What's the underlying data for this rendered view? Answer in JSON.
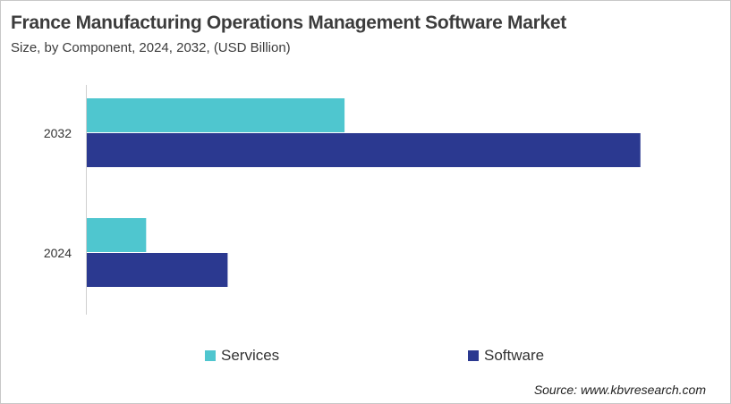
{
  "chart_data": {
    "type": "bar",
    "orientation": "horizontal",
    "title": "France Manufacturing  Operations Management Software Market",
    "subtitle": "Size, by Component, 2024, 2032, (USD Billion)",
    "categories": [
      "2032",
      "2024"
    ],
    "series": [
      {
        "name": "Services",
        "color": "#4fc6cf",
        "values": [
          29.1,
          6.7
        ]
      },
      {
        "name": "Software",
        "color": "#2b3990",
        "values": [
          62.5,
          15.9
        ]
      }
    ],
    "xlim": [
      0,
      70
    ],
    "grid": false,
    "legend_position": "bottom",
    "source": "Source: www.kbvresearch.com"
  }
}
